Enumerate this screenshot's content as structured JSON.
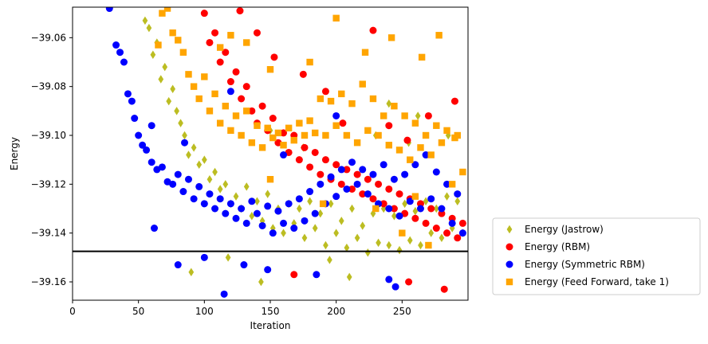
{
  "chart_data": {
    "type": "scatter",
    "xlabel": "Iteration",
    "ylabel": "Energy",
    "xlim": [
      0,
      300
    ],
    "ylim": [
      -39.1675,
      -39.0475
    ],
    "xticks": [
      0,
      50,
      100,
      150,
      200,
      250
    ],
    "yticks": [
      -39.16,
      -39.14,
      -39.12,
      -39.1,
      -39.08,
      -39.06
    ],
    "ytick_labels": [
      "−39.16",
      "−39.14",
      "−39.12",
      "−39.10",
      "−39.08",
      "−39.06"
    ],
    "grid": false,
    "legend_placement": "outside-right-bottom",
    "reference_line": {
      "y": -39.1475,
      "color": "#000000"
    },
    "series": [
      {
        "name": "Energy (Jastrow)",
        "marker": "diamond",
        "color": "#bcbd22",
        "points": [
          [
            55,
            -39.053
          ],
          [
            58,
            -39.056
          ],
          [
            61,
            -39.067
          ],
          [
            64,
            -39.062
          ],
          [
            67,
            -39.077
          ],
          [
            70,
            -39.072
          ],
          [
            73,
            -39.086
          ],
          [
            76,
            -39.081
          ],
          [
            79,
            -39.09
          ],
          [
            82,
            -39.095
          ],
          [
            85,
            -39.1
          ],
          [
            88,
            -39.108
          ],
          [
            92,
            -39.105
          ],
          [
            96,
            -39.112
          ],
          [
            100,
            -39.11
          ],
          [
            104,
            -39.118
          ],
          [
            108,
            -39.115
          ],
          [
            112,
            -39.122
          ],
          [
            116,
            -39.12
          ],
          [
            120,
            -39.128
          ],
          [
            124,
            -39.125
          ],
          [
            128,
            -39.13
          ],
          [
            132,
            -39.121
          ],
          [
            136,
            -39.133
          ],
          [
            140,
            -39.127
          ],
          [
            144,
            -39.135
          ],
          [
            148,
            -39.124
          ],
          [
            152,
            -39.138
          ],
          [
            156,
            -39.13
          ],
          [
            160,
            -39.14
          ],
          [
            164,
            -39.128
          ],
          [
            168,
            -39.136
          ],
          [
            172,
            -39.13
          ],
          [
            176,
            -39.142
          ],
          [
            180,
            -39.127
          ],
          [
            184,
            -39.138
          ],
          [
            188,
            -39.132
          ],
          [
            192,
            -39.145
          ],
          [
            196,
            -39.128
          ],
          [
            200,
            -39.14
          ],
          [
            204,
            -39.135
          ],
          [
            208,
            -39.146
          ],
          [
            212,
            -39.13
          ],
          [
            216,
            -39.142
          ],
          [
            220,
            -39.137
          ],
          [
            224,
            -39.148
          ],
          [
            228,
            -39.132
          ],
          [
            232,
            -39.144
          ],
          [
            236,
            -39.13
          ],
          [
            240,
            -39.145
          ],
          [
            244,
            -39.133
          ],
          [
            248,
            -39.147
          ],
          [
            252,
            -39.128
          ],
          [
            256,
            -39.143
          ],
          [
            260,
            -39.131
          ],
          [
            264,
            -39.145
          ],
          [
            268,
            -39.127
          ],
          [
            272,
            -39.14
          ],
          [
            276,
            -39.13
          ],
          [
            280,
            -39.142
          ],
          [
            284,
            -39.125
          ],
          [
            288,
            -39.138
          ],
          [
            292,
            -39.127
          ],
          [
            296,
            -39.14
          ],
          [
            90,
            -39.156
          ],
          [
            118,
            -39.15
          ],
          [
            143,
            -39.16
          ],
          [
            195,
            -39.151
          ],
          [
            210,
            -39.158
          ],
          [
            240,
            -39.087
          ],
          [
            262,
            -39.092
          ],
          [
            150,
            -39.098
          ],
          [
            175,
            -39.105
          ],
          [
            230,
            -39.1
          ],
          [
            255,
            -39.103
          ],
          [
            285,
            -39.1
          ]
        ]
      },
      {
        "name": "Energy (RBM)",
        "marker": "circle",
        "color": "#ff0000",
        "points": [
          [
            100,
            -39.05
          ],
          [
            104,
            -39.062
          ],
          [
            108,
            -39.058
          ],
          [
            112,
            -39.07
          ],
          [
            116,
            -39.066
          ],
          [
            120,
            -39.078
          ],
          [
            124,
            -39.074
          ],
          [
            128,
            -39.085
          ],
          [
            132,
            -39.08
          ],
          [
            136,
            -39.09
          ],
          [
            140,
            -39.095
          ],
          [
            144,
            -39.088
          ],
          [
            148,
            -39.098
          ],
          [
            152,
            -39.093
          ],
          [
            156,
            -39.103
          ],
          [
            160,
            -39.099
          ],
          [
            164,
            -39.107
          ],
          [
            168,
            -39.1
          ],
          [
            172,
            -39.11
          ],
          [
            176,
            -39.105
          ],
          [
            180,
            -39.113
          ],
          [
            184,
            -39.107
          ],
          [
            188,
            -39.116
          ],
          [
            192,
            -39.11
          ],
          [
            196,
            -39.118
          ],
          [
            200,
            -39.112
          ],
          [
            204,
            -39.12
          ],
          [
            208,
            -39.114
          ],
          [
            212,
            -39.122
          ],
          [
            216,
            -39.116
          ],
          [
            220,
            -39.124
          ],
          [
            224,
            -39.118
          ],
          [
            228,
            -39.126
          ],
          [
            232,
            -39.12
          ],
          [
            236,
            -39.128
          ],
          [
            240,
            -39.122
          ],
          [
            244,
            -39.13
          ],
          [
            248,
            -39.124
          ],
          [
            252,
            -39.132
          ],
          [
            256,
            -39.126
          ],
          [
            260,
            -39.134
          ],
          [
            264,
            -39.128
          ],
          [
            268,
            -39.136
          ],
          [
            272,
            -39.13
          ],
          [
            276,
            -39.138
          ],
          [
            280,
            -39.132
          ],
          [
            284,
            -39.14
          ],
          [
            288,
            -39.134
          ],
          [
            292,
            -39.142
          ],
          [
            296,
            -39.136
          ],
          [
            127,
            -39.049
          ],
          [
            140,
            -39.058
          ],
          [
            153,
            -39.068
          ],
          [
            175,
            -39.075
          ],
          [
            192,
            -39.082
          ],
          [
            205,
            -39.095
          ],
          [
            228,
            -39.057
          ],
          [
            240,
            -39.096
          ],
          [
            254,
            -39.102
          ],
          [
            270,
            -39.092
          ],
          [
            290,
            -39.086
          ],
          [
            255,
            -39.16
          ],
          [
            282,
            -39.163
          ],
          [
            168,
            -39.157
          ]
        ]
      },
      {
        "name": "Energy (Symmetric RBM)",
        "marker": "circle",
        "color": "#0000ff",
        "points": [
          [
            28,
            -39.048
          ],
          [
            33,
            -39.063
          ],
          [
            36,
            -39.066
          ],
          [
            39,
            -39.07
          ],
          [
            42,
            -39.083
          ],
          [
            45,
            -39.086
          ],
          [
            47,
            -39.093
          ],
          [
            50,
            -39.1
          ],
          [
            53,
            -39.104
          ],
          [
            56,
            -39.106
          ],
          [
            60,
            -39.111
          ],
          [
            64,
            -39.114
          ],
          [
            68,
            -39.113
          ],
          [
            72,
            -39.119
          ],
          [
            76,
            -39.12
          ],
          [
            80,
            -39.116
          ],
          [
            84,
            -39.123
          ],
          [
            88,
            -39.118
          ],
          [
            92,
            -39.126
          ],
          [
            96,
            -39.121
          ],
          [
            100,
            -39.128
          ],
          [
            104,
            -39.124
          ],
          [
            108,
            -39.13
          ],
          [
            112,
            -39.126
          ],
          [
            116,
            -39.132
          ],
          [
            120,
            -39.128
          ],
          [
            124,
            -39.134
          ],
          [
            128,
            -39.13
          ],
          [
            132,
            -39.136
          ],
          [
            136,
            -39.127
          ],
          [
            140,
            -39.132
          ],
          [
            144,
            -39.137
          ],
          [
            148,
            -39.129
          ],
          [
            152,
            -39.14
          ],
          [
            156,
            -39.131
          ],
          [
            160,
            -39.136
          ],
          [
            164,
            -39.128
          ],
          [
            168,
            -39.138
          ],
          [
            172,
            -39.126
          ],
          [
            176,
            -39.135
          ],
          [
            180,
            -39.123
          ],
          [
            184,
            -39.132
          ],
          [
            188,
            -39.12
          ],
          [
            192,
            -39.128
          ],
          [
            196,
            -39.117
          ],
          [
            200,
            -39.125
          ],
          [
            204,
            -39.114
          ],
          [
            208,
            -39.122
          ],
          [
            212,
            -39.111
          ],
          [
            216,
            -39.12
          ],
          [
            220,
            -39.114
          ],
          [
            224,
            -39.124
          ],
          [
            228,
            -39.116
          ],
          [
            232,
            -39.128
          ],
          [
            236,
            -39.112
          ],
          [
            240,
            -39.13
          ],
          [
            244,
            -39.118
          ],
          [
            248,
            -39.133
          ],
          [
            252,
            -39.116
          ],
          [
            256,
            -39.127
          ],
          [
            260,
            -39.112
          ],
          [
            264,
            -39.13
          ],
          [
            268,
            -39.108
          ],
          [
            272,
            -39.126
          ],
          [
            276,
            -39.115
          ],
          [
            280,
            -39.13
          ],
          [
            284,
            -39.12
          ],
          [
            288,
            -39.136
          ],
          [
            292,
            -39.124
          ],
          [
            296,
            -39.14
          ],
          [
            62,
            -39.138
          ],
          [
            80,
            -39.153
          ],
          [
            100,
            -39.15
          ],
          [
            115,
            -39.165
          ],
          [
            130,
            -39.153
          ],
          [
            148,
            -39.155
          ],
          [
            185,
            -39.157
          ],
          [
            245,
            -39.162
          ],
          [
            240,
            -39.159
          ],
          [
            60,
            -39.096
          ],
          [
            85,
            -39.103
          ],
          [
            120,
            -39.082
          ],
          [
            160,
            -39.108
          ],
          [
            200,
            -39.092
          ]
        ]
      },
      {
        "name": "Energy (Feed Forward, take 1)",
        "marker": "square",
        "color": "#ffa500",
        "points": [
          [
            65,
            -39.063
          ],
          [
            68,
            -39.05
          ],
          [
            72,
            -39.048
          ],
          [
            76,
            -39.058
          ],
          [
            80,
            -39.061
          ],
          [
            84,
            -39.066
          ],
          [
            88,
            -39.075
          ],
          [
            92,
            -39.08
          ],
          [
            96,
            -39.085
          ],
          [
            100,
            -39.076
          ],
          [
            104,
            -39.09
          ],
          [
            108,
            -39.083
          ],
          [
            112,
            -39.095
          ],
          [
            116,
            -39.088
          ],
          [
            120,
            -39.098
          ],
          [
            124,
            -39.092
          ],
          [
            128,
            -39.1
          ],
          [
            132,
            -39.09
          ],
          [
            136,
            -39.103
          ],
          [
            140,
            -39.096
          ],
          [
            144,
            -39.105
          ],
          [
            148,
            -39.097
          ],
          [
            152,
            -39.101
          ],
          [
            156,
            -39.099
          ],
          [
            160,
            -39.104
          ],
          [
            164,
            -39.097
          ],
          [
            168,
            -39.102
          ],
          [
            172,
            -39.095
          ],
          [
            176,
            -39.1
          ],
          [
            180,
            -39.094
          ],
          [
            184,
            -39.099
          ],
          [
            188,
            -39.085
          ],
          [
            192,
            -39.1
          ],
          [
            196,
            -39.086
          ],
          [
            200,
            -39.096
          ],
          [
            204,
            -39.083
          ],
          [
            208,
            -39.1
          ],
          [
            212,
            -39.087
          ],
          [
            216,
            -39.103
          ],
          [
            220,
            -39.079
          ],
          [
            224,
            -39.098
          ],
          [
            228,
            -39.085
          ],
          [
            232,
            -39.1
          ],
          [
            236,
            -39.092
          ],
          [
            240,
            -39.104
          ],
          [
            244,
            -39.088
          ],
          [
            248,
            -39.106
          ],
          [
            252,
            -39.092
          ],
          [
            256,
            -39.11
          ],
          [
            260,
            -39.095
          ],
          [
            264,
            -39.105
          ],
          [
            268,
            -39.1
          ],
          [
            272,
            -39.108
          ],
          [
            276,
            -39.096
          ],
          [
            280,
            -39.103
          ],
          [
            284,
            -39.098
          ],
          [
            288,
            -39.12
          ],
          [
            292,
            -39.1
          ],
          [
            296,
            -39.115
          ],
          [
            100,
            -39.046
          ],
          [
            112,
            -39.064
          ],
          [
            120,
            -39.059
          ],
          [
            132,
            -39.062
          ],
          [
            150,
            -39.073
          ],
          [
            180,
            -39.07
          ],
          [
            200,
            -39.052
          ],
          [
            222,
            -39.066
          ],
          [
            242,
            -39.06
          ],
          [
            265,
            -39.068
          ],
          [
            278,
            -39.059
          ],
          [
            290,
            -39.101
          ],
          [
            150,
            -39.118
          ],
          [
            190,
            -39.128
          ],
          [
            230,
            -39.13
          ],
          [
            250,
            -39.14
          ],
          [
            260,
            -39.125
          ],
          [
            270,
            -39.145
          ]
        ]
      }
    ]
  }
}
